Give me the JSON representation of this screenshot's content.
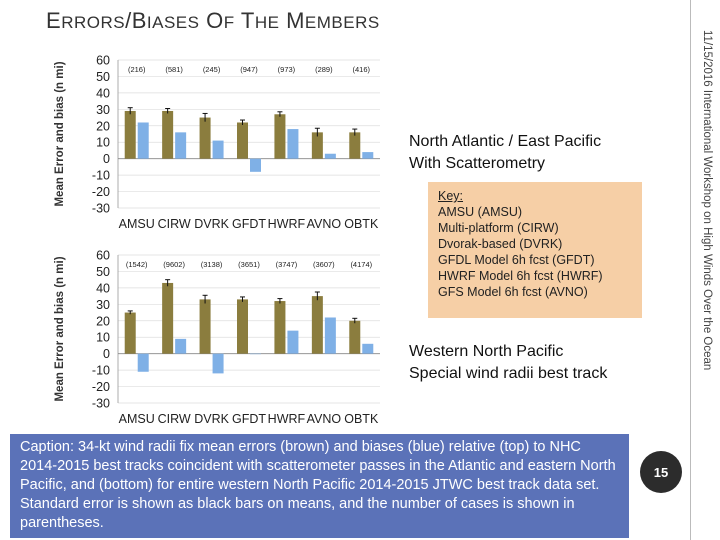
{
  "slide": {
    "title": "Errors/Biases of the Members",
    "side_text": "11/15/2016   International Workshop on High Winds Over the Ocean",
    "page_number": "15",
    "label_top_line1": "North Atlantic / East Pacific",
    "label_top_line2": "With Scatterometry",
    "label_bottom_line1": "Western North Pacific",
    "label_bottom_line2": "Special wind radii best track",
    "key": {
      "title": "Key:",
      "items": [
        "AMSU (AMSU)",
        "Multi-platform (CIRW)",
        "Dvorak-based (DVRK)",
        "GFDL Model 6h fcst (GFDT)",
        "HWRF Model 6h fcst (HWRF)",
        "GFS Model 6h fcst (AVNO)"
      ]
    },
    "caption": "Caption: 34-kt wind radii fix mean errors (brown) and biases (blue) relative (top) to NHC 2014-2015 best tracks coincident with scatterometer passes in the Atlantic and eastern North Pacific, and (bottom) for entire western North Pacific 2014-2015 JTWC best track data set. Standard error is shown as black bars on means, and the number of cases is shown in parentheses.",
    "colors": {
      "error": "#8b7d3e",
      "bias": "#7fb0e6",
      "caption_bg": "#5b72b8",
      "key_bg": "#f6cfa6"
    }
  },
  "chart_data": [
    {
      "type": "bar",
      "title": "North Atlantic / East Pacific With Scatterometry",
      "ylabel": "Mean Error and bias (n mi)",
      "xlabel": "",
      "ylim": [
        -30,
        60
      ],
      "yticks": [
        -30,
        -20,
        -10,
        0,
        10,
        20,
        30,
        40,
        50,
        60
      ],
      "categories": [
        "AMSU",
        "CIRW",
        "DVRK",
        "GFDT",
        "HWRF",
        "AVNO",
        "OBTK"
      ],
      "counts": [
        "(216)",
        "(581)",
        "(245)",
        "(947)",
        "(973)",
        "(289)",
        "(416)"
      ],
      "series": [
        {
          "name": "Mean error",
          "values": [
            29,
            29,
            25,
            22,
            27,
            16,
            16
          ],
          "stderr": [
            2,
            1.5,
            2.5,
            1.5,
            1.5,
            2.5,
            2
          ]
        },
        {
          "name": "Bias",
          "values": [
            22,
            16,
            11,
            -8,
            18,
            3,
            4
          ]
        }
      ]
    },
    {
      "type": "bar",
      "title": "Western North Pacific Special wind radii best track",
      "ylabel": "Mean Error and bias (n mi)",
      "xlabel": "",
      "ylim": [
        -30,
        60
      ],
      "yticks": [
        -30,
        -20,
        -10,
        0,
        10,
        20,
        30,
        40,
        50,
        60
      ],
      "categories": [
        "AMSU",
        "CIRW",
        "DVRK",
        "GFDT",
        "HWRF",
        "AVNO",
        "OBTK"
      ],
      "counts": [
        "(1542)",
        "(9602)",
        "(3138)",
        "(3651)",
        "(3747)",
        "(3607)",
        "(4174)"
      ],
      "series": [
        {
          "name": "Mean error",
          "values": [
            25,
            43,
            33,
            33,
            32,
            35,
            20
          ],
          "stderr": [
            1,
            2,
            2.5,
            1.5,
            1.5,
            2.5,
            1.5
          ]
        },
        {
          "name": "Bias",
          "values": [
            -11,
            9,
            -12,
            0,
            14,
            22,
            6
          ]
        }
      ]
    }
  ]
}
